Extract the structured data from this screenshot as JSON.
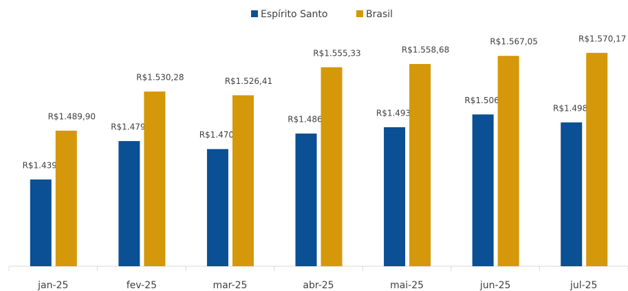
{
  "chart_data": {
    "type": "bar",
    "categories": [
      "jan-25",
      "fev-25",
      "mar-25",
      "abr-25",
      "mai-25",
      "jun-25",
      "jul-25"
    ],
    "series": [
      {
        "name": "Espírito Santo",
        "color": "#0b4f94",
        "values": [
          1439.53,
          1479.15,
          1470.9,
          1486.92,
          1493.47,
          1506.63,
          1498.42
        ],
        "value_labels": [
          "R$1.439,53",
          "R$1.479,15",
          "R$1.470,90",
          "R$1.486,92",
          "R$1.493,47",
          "R$1.506,63",
          "R$1.498,42"
        ]
      },
      {
        "name": "Brasil",
        "color": "#d4980a",
        "values": [
          1489.9,
          1530.28,
          1526.41,
          1555.33,
          1558.68,
          1567.05,
          1570.17
        ],
        "value_labels": [
          "R$1.489,90",
          "R$1.530,28",
          "R$1.526,41",
          "R$1.555,33",
          "R$1.558,68",
          "R$1.567,05",
          "R$1.570,17"
        ]
      }
    ],
    "ylim": [
      1350,
      1580
    ],
    "legend": "top"
  }
}
